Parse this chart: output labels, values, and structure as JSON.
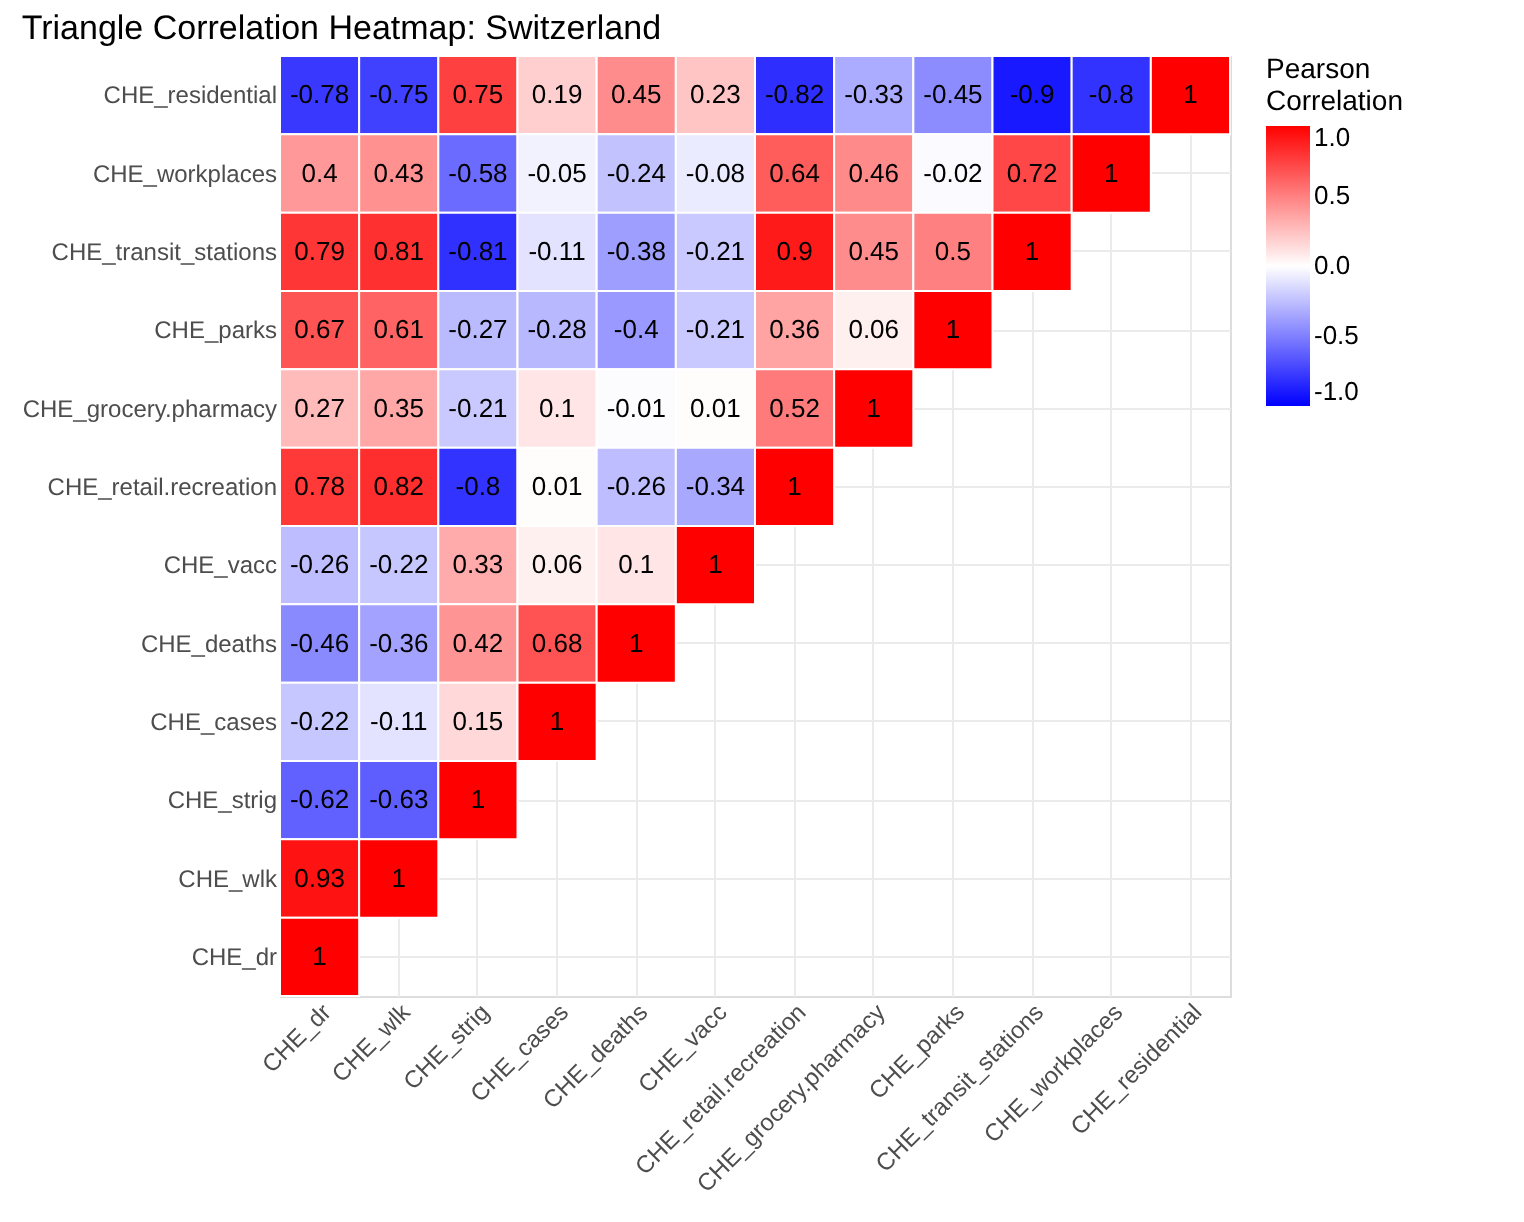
{
  "chart_data": {
    "type": "heatmap",
    "title": "Triangle Correlation Heatmap: Switzerland",
    "legend_title": "Pearson Correlation",
    "categories": [
      "CHE_dr",
      "CHE_wlk",
      "CHE_strig",
      "CHE_cases",
      "CHE_deaths",
      "CHE_vacc",
      "CHE_retail.recreation",
      "CHE_grocery.pharmacy",
      "CHE_parks",
      "CHE_transit_stations",
      "CHE_workplaces",
      "CHE_residential"
    ],
    "y_categories": [
      "CHE_residential",
      "CHE_workplaces",
      "CHE_transit_stations",
      "CHE_parks",
      "CHE_grocery.pharmacy",
      "CHE_retail.recreation",
      "CHE_vacc",
      "CHE_deaths",
      "CHE_cases",
      "CHE_strig",
      "CHE_wlk",
      "CHE_dr"
    ],
    "cells": [
      [
        -0.78,
        -0.75,
        0.75,
        0.19,
        0.45,
        0.23,
        -0.82,
        -0.33,
        -0.45,
        -0.9,
        -0.8,
        1
      ],
      [
        0.4,
        0.43,
        -0.58,
        -0.05,
        -0.24,
        -0.08,
        0.64,
        0.46,
        -0.02,
        0.72,
        1,
        null
      ],
      [
        0.79,
        0.81,
        -0.81,
        -0.11,
        -0.38,
        -0.21,
        0.9,
        0.45,
        0.5,
        1,
        null,
        null
      ],
      [
        0.67,
        0.61,
        -0.27,
        -0.28,
        -0.4,
        -0.21,
        0.36,
        0.06,
        1,
        null,
        null,
        null
      ],
      [
        0.27,
        0.35,
        -0.21,
        0.1,
        -0.01,
        0.01,
        0.52,
        1,
        null,
        null,
        null,
        null
      ],
      [
        0.78,
        0.82,
        -0.8,
        0.01,
        -0.26,
        -0.34,
        1,
        null,
        null,
        null,
        null,
        null
      ],
      [
        -0.26,
        -0.22,
        0.33,
        0.06,
        0.1,
        1,
        null,
        null,
        null,
        null,
        null,
        null
      ],
      [
        -0.46,
        -0.36,
        0.42,
        0.68,
        1,
        null,
        null,
        null,
        null,
        null,
        null,
        null
      ],
      [
        -0.22,
        -0.11,
        0.15,
        1,
        null,
        null,
        null,
        null,
        null,
        null,
        null,
        null
      ],
      [
        -0.62,
        -0.63,
        1,
        null,
        null,
        null,
        null,
        null,
        null,
        null,
        null,
        null
      ],
      [
        0.93,
        1,
        null,
        null,
        null,
        null,
        null,
        null,
        null,
        null,
        null,
        null
      ],
      [
        1,
        null,
        null,
        null,
        null,
        null,
        null,
        null,
        null,
        null,
        null,
        null
      ]
    ],
    "clim": [
      -1.0,
      1.0
    ],
    "cticks": [
      {
        "value": 1.0,
        "label": "1.0"
      },
      {
        "value": 0.5,
        "label": "0.5"
      },
      {
        "value": 0.0,
        "label": "0.0"
      },
      {
        "value": -0.5,
        "label": "-0.5"
      },
      {
        "value": -1.0,
        "label": "-1.0"
      }
    ],
    "data_labels": true,
    "grid": true
  }
}
